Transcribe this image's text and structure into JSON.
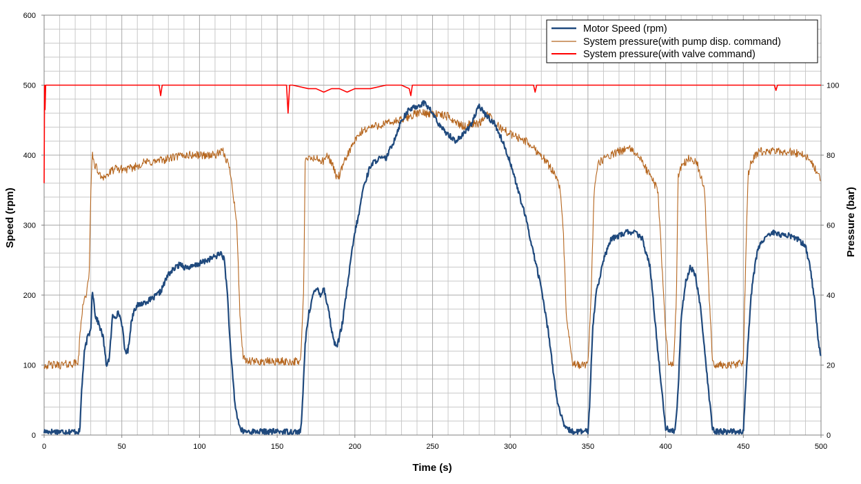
{
  "chart_data": {
    "type": "line",
    "title": "",
    "xlabel": "Time (s)",
    "ylabel": "Speed (rpm)",
    "y2label": "Pressure (bar)",
    "xlim": [
      0,
      500
    ],
    "ylim": [
      0,
      600
    ],
    "y2lim": [
      0,
      120
    ],
    "x_ticks": [
      0,
      50,
      100,
      150,
      200,
      250,
      300,
      350,
      400,
      450,
      500
    ],
    "y_ticks": [
      0,
      100,
      200,
      300,
      400,
      500,
      600
    ],
    "y2_ticks": [
      0,
      20,
      40,
      60,
      80,
      100
    ],
    "grid": true,
    "legend_position": "top-right",
    "series": [
      {
        "name": "Motor Speed (rpm)",
        "axis": "left",
        "color": "#1F497D",
        "x": [
          0,
          5,
          10,
          15,
          20,
          23,
          24,
          26,
          28,
          30,
          31,
          33,
          35,
          38,
          40,
          42,
          44,
          46,
          48,
          50,
          52,
          54,
          56,
          58,
          60,
          65,
          70,
          75,
          80,
          85,
          88,
          90,
          95,
          100,
          105,
          110,
          114,
          116,
          118,
          120,
          123,
          126,
          128,
          130,
          135,
          140,
          150,
          160,
          165,
          166,
          168,
          170,
          173,
          176,
          178,
          180,
          183,
          185,
          187,
          189,
          192,
          195,
          198,
          200,
          203,
          205,
          210,
          215,
          220,
          225,
          230,
          235,
          240,
          245,
          250,
          255,
          260,
          265,
          270,
          275,
          280,
          285,
          290,
          295,
          300,
          305,
          310,
          315,
          320,
          325,
          330,
          335,
          340,
          345,
          350,
          351,
          353,
          355,
          360,
          365,
          370,
          375,
          380,
          385,
          390,
          395,
          400,
          405,
          406,
          408,
          410,
          413,
          416,
          419,
          422,
          426,
          430,
          432,
          435,
          440,
          445,
          450,
          451,
          453,
          455,
          458,
          460,
          465,
          470,
          475,
          480,
          485,
          490,
          493,
          496,
          498,
          500
        ],
        "values": [
          5,
          5,
          5,
          5,
          5,
          5,
          60,
          120,
          140,
          150,
          210,
          170,
          160,
          140,
          100,
          110,
          170,
          170,
          175,
          160,
          120,
          120,
          160,
          180,
          185,
          190,
          195,
          205,
          230,
          240,
          245,
          240,
          240,
          245,
          250,
          255,
          260,
          250,
          200,
          120,
          40,
          10,
          5,
          5,
          5,
          5,
          5,
          5,
          5,
          30,
          130,
          170,
          200,
          210,
          200,
          210,
          180,
          150,
          130,
          130,
          160,
          210,
          260,
          290,
          320,
          350,
          385,
          395,
          395,
          420,
          450,
          465,
          470,
          475,
          460,
          440,
          430,
          420,
          430,
          445,
          470,
          455,
          445,
          420,
          390,
          350,
          310,
          260,
          210,
          140,
          50,
          10,
          5,
          5,
          5,
          40,
          150,
          200,
          250,
          280,
          285,
          290,
          290,
          280,
          240,
          120,
          10,
          5,
          5,
          60,
          170,
          220,
          240,
          230,
          190,
          100,
          10,
          5,
          5,
          5,
          5,
          5,
          50,
          130,
          200,
          250,
          270,
          285,
          290,
          285,
          285,
          280,
          270,
          240,
          190,
          140,
          110
        ]
      },
      {
        "name": "System pressure(with pump disp. command)",
        "axis": "right",
        "color": "#B5651D",
        "x": [
          0,
          10,
          20,
          22,
          23,
          25,
          27,
          29,
          30,
          31,
          32,
          34,
          36,
          38,
          40,
          45,
          50,
          55,
          60,
          65,
          70,
          80,
          90,
          100,
          110,
          115,
          118,
          120,
          122,
          124,
          126,
          128,
          130,
          140,
          150,
          160,
          165,
          167,
          168,
          170,
          175,
          180,
          182,
          185,
          188,
          190,
          195,
          200,
          205,
          210,
          220,
          230,
          240,
          250,
          260,
          270,
          275,
          280,
          285,
          290,
          300,
          310,
          320,
          325,
          330,
          332,
          334,
          336,
          340,
          345,
          350,
          352,
          354,
          356,
          360,
          370,
          375,
          380,
          385,
          390,
          395,
          400,
          402,
          405,
          407,
          408,
          410,
          415,
          420,
          425,
          428,
          430,
          432,
          435,
          440,
          445,
          450,
          451,
          453,
          455,
          460,
          470,
          480,
          490,
          495,
          500
        ],
        "values": [
          20,
          20,
          20.5,
          21,
          28,
          38,
          40,
          45,
          70,
          80,
          78,
          76,
          74,
          74,
          74,
          76,
          76,
          76,
          77,
          78,
          78,
          79,
          80,
          80,
          80,
          81,
          78,
          75,
          68,
          60,
          35,
          22,
          21,
          21,
          21,
          21,
          21,
          40,
          78,
          79,
          79,
          78,
          80,
          78,
          74,
          74,
          80,
          84,
          87,
          88,
          89,
          90,
          92,
          92,
          91,
          88,
          89,
          89,
          92,
          89,
          86,
          84,
          80,
          77,
          74,
          70,
          60,
          35,
          20,
          20,
          20,
          40,
          70,
          77,
          79,
          81,
          82,
          81,
          78,
          74,
          70,
          30,
          20,
          20,
          40,
          74,
          77,
          79,
          78,
          70,
          40,
          22,
          20,
          20,
          20,
          20,
          21,
          40,
          74,
          78,
          81,
          81,
          81,
          80,
          77,
          73
        ]
      },
      {
        "name": "System pressure(with valve command)",
        "axis": "right",
        "color": "#FF0000",
        "x": [
          0,
          0.3,
          0.6,
          1,
          3,
          5,
          30,
          60,
          74,
          75,
          76,
          78,
          100,
          150,
          155,
          156,
          157,
          158,
          160,
          170,
          175,
          180,
          185,
          190,
          195,
          200,
          210,
          220,
          230,
          235,
          236,
          237,
          240,
          260,
          280,
          300,
          315,
          316,
          317,
          320,
          340,
          360,
          380,
          400,
          420,
          440,
          470,
          471,
          472,
          480,
          500
        ],
        "values": [
          72,
          100,
          93,
          100,
          100,
          100,
          100,
          100,
          100,
          97,
          100,
          100,
          100,
          100,
          100,
          100,
          92,
          100,
          100,
          99,
          99,
          98,
          99,
          99,
          98,
          99,
          99,
          100,
          100,
          99,
          97,
          100,
          100,
          100,
          100,
          100,
          100,
          98,
          100,
          100,
          100,
          100,
          100,
          100,
          100,
          100,
          100,
          98.5,
          100,
          100,
          100
        ]
      }
    ]
  }
}
